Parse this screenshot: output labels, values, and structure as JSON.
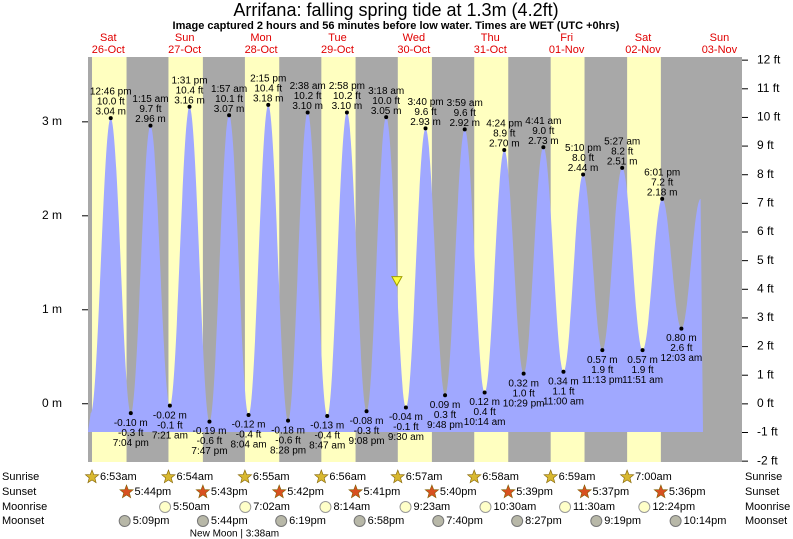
{
  "chart_data": {
    "type": "tide",
    "title": "Arrifana: falling  spring tide at 1.3m (4.2ft)",
    "subtitle": "Image captured 2 hours and 56 minutes before low water. Times are WET (UTC +0hrs)",
    "days": [
      "Sat",
      "Sun",
      "Mon",
      "Tue",
      "Wed",
      "Thu",
      "Fri",
      "Sat",
      "Sun"
    ],
    "dates": [
      "26-Oct",
      "27-Oct",
      "28-Oct",
      "29-Oct",
      "30-Oct",
      "31-Oct",
      "01-Nov",
      "02-Nov",
      "03-Nov"
    ],
    "ylim": [
      -0.62,
      3.69
    ],
    "yticks": [
      {
        "value": 0,
        "label": "0 m"
      },
      {
        "value": 1,
        "label": "1 m"
      },
      {
        "value": 2,
        "label": "2 m"
      },
      {
        "value": 3,
        "label": "3 m"
      }
    ],
    "y2lim": [
      -2.03,
      12.11
    ],
    "y2ticks": [
      {
        "value": -2,
        "label": "-2 ft"
      },
      {
        "value": -1,
        "label": "-1 ft"
      },
      {
        "value": 0,
        "label": "0 ft"
      },
      {
        "value": 1,
        "label": "1 ft"
      },
      {
        "value": 2,
        "label": "2 ft"
      },
      {
        "value": 3,
        "label": "3 ft"
      },
      {
        "value": 4,
        "label": "4 ft"
      },
      {
        "value": 5,
        "label": "5 ft"
      },
      {
        "value": 6,
        "label": "6 ft"
      },
      {
        "value": 7,
        "label": "7 ft"
      },
      {
        "value": 8,
        "label": "8 ft"
      },
      {
        "value": 9,
        "label": "9 ft"
      },
      {
        "value": 10,
        "label": "10 ft"
      },
      {
        "value": 11,
        "label": "11 ft"
      },
      {
        "value": 12,
        "label": "12 ft"
      }
    ],
    "tide_color": "#a0a8ff",
    "day_color": "#ffffc0",
    "night_color": "#a8a8a8",
    "current_level": 1.3,
    "tides": {
      "times": [
        "12:46 pm",
        "7:04 pm",
        "1:15 am",
        "7:21 am",
        "1:31 pm",
        "7:47 pm",
        "1:57 am",
        "8:04 am",
        "2:15 pm",
        "8:28 pm",
        "2:38 am",
        "8:47 am",
        "2:58 pm",
        "9:08 pm",
        "3:18 am",
        "9:30 am",
        "3:40 pm",
        "9:48 pm",
        "3:59 am",
        "10:14 am",
        "4:24 pm",
        "10:29 pm",
        "4:41 am",
        "11:00 am",
        "5:10 pm",
        "11:13 pm",
        "5:27 am",
        "11:51 am",
        "6:01 pm",
        "12:03 am"
      ],
      "values": [
        3.04,
        -0.1,
        2.96,
        -0.02,
        3.16,
        -0.19,
        3.07,
        -0.12,
        3.18,
        -0.18,
        3.1,
        -0.13,
        3.1,
        -0.08,
        3.05,
        -0.04,
        2.93,
        0.09,
        2.92,
        0.12,
        2.7,
        0.32,
        2.73,
        0.34,
        2.44,
        0.57,
        2.51,
        0.57,
        2.18,
        0.8
      ],
      "value_labels": [
        "3.04 m",
        "-0.10 m",
        "2.96 m",
        "-0.02 m",
        "3.16 m",
        "-0.19 m",
        "3.07 m",
        "-0.12 m",
        "3.18 m",
        "-0.18 m",
        "3.10 m",
        "-0.13 m",
        "3.10 m",
        "-0.08 m",
        "3.05 m",
        "-0.04 m",
        "2.93 m",
        "0.09 m",
        "2.92 m",
        "0.12 m",
        "2.70 m",
        "0.32 m",
        "2.73 m",
        "0.34 m",
        "2.44 m",
        "0.57 m",
        "2.51 m",
        "0.57 m",
        "2.18 m",
        "0.80 m"
      ],
      "ft_values": [
        10.0,
        -0.3,
        9.7,
        -0.1,
        10.4,
        -0.6,
        10.1,
        -0.4,
        10.4,
        -0.6,
        10.2,
        -0.4,
        10.2,
        -0.3,
        10.0,
        -0.1,
        9.6,
        0.3,
        9.6,
        0.4,
        8.9,
        1.0,
        9.0,
        1.1,
        8.0,
        1.9,
        8.2,
        1.9,
        7.2,
        2.6
      ],
      "ft_labels": [
        "10.0 ft",
        "-0.3 ft",
        "9.7 ft",
        "-0.1 ft",
        "10.4 ft",
        "-0.6 ft",
        "10.1 ft",
        "-0.4 ft",
        "10.4 ft",
        "-0.6 ft",
        "10.2 ft",
        "-0.4 ft",
        "10.2 ft",
        "-0.3 ft",
        "10.0 ft",
        "-0.1 ft",
        "9.6 ft",
        "0.3 ft",
        "9.6 ft",
        "0.4 ft",
        "8.9 ft",
        "1.0 ft",
        "9.0 ft",
        "1.1 ft",
        "8.0 ft",
        "1.9 ft",
        "8.2 ft",
        "1.9 ft",
        "7.2 ft",
        "2.6 ft"
      ]
    },
    "row_labels": [
      "Sunrise",
      "Sunset",
      "Moonrise",
      "Moonset"
    ],
    "sunrise": [
      "6:53am",
      "6:54am",
      "6:55am",
      "6:56am",
      "6:57am",
      "6:58am",
      "6:59am",
      "7:00am",
      null
    ],
    "sunset": [
      "5:44pm",
      "5:43pm",
      "5:42pm",
      "5:41pm",
      "5:40pm",
      "5:39pm",
      "5:37pm",
      "5:36pm",
      null
    ],
    "moonrise": [
      null,
      "5:50am",
      "7:02am",
      "8:14am",
      "9:23am",
      "10:30am",
      "11:30am",
      "12:24pm",
      null
    ],
    "moonset": [
      "5:09pm",
      "5:44pm",
      "6:19pm",
      "6:58pm",
      "7:40pm",
      "8:27pm",
      "9:19pm",
      "10:14pm",
      null
    ],
    "moon_phase": [
      null,
      null,
      "New Moon | 3:38am",
      null,
      null,
      null,
      null,
      null,
      null
    ]
  }
}
